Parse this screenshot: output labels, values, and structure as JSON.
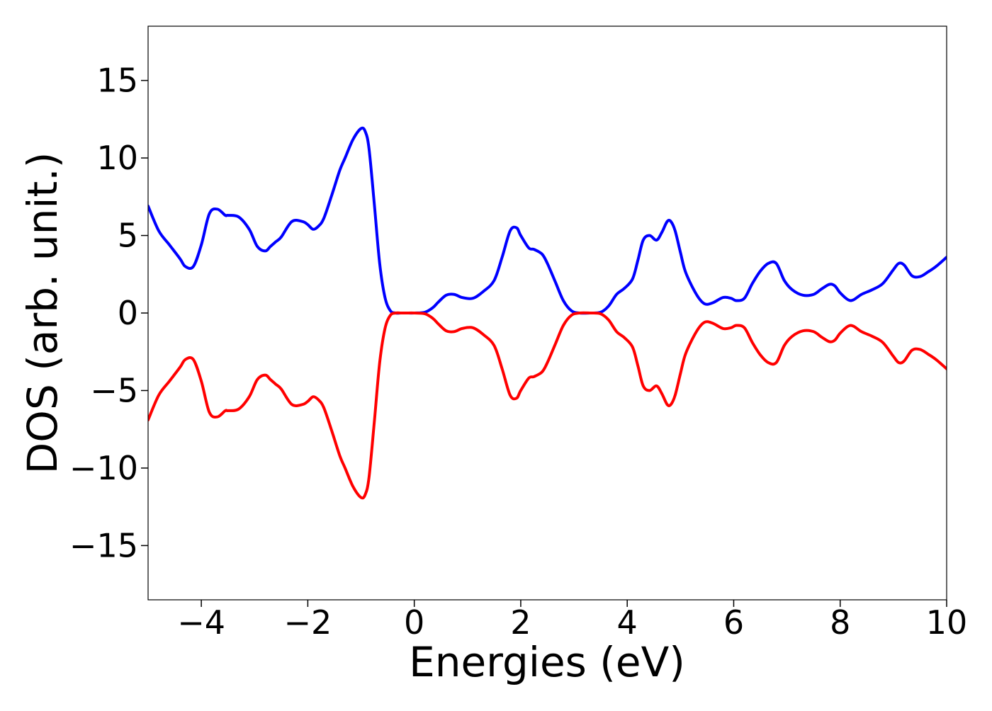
{
  "chart_data": {
    "type": "line",
    "xlabel": "Energies (eV)",
    "ylabel": "DOS (arb. unit.)",
    "xlim": [
      -5,
      10
    ],
    "ylim": [
      -18.5,
      18.5
    ],
    "xticks": [
      -4,
      -2,
      0,
      2,
      4,
      6,
      8,
      10
    ],
    "xtick_labels": [
      "−4",
      "−2",
      "0",
      "2",
      "4",
      "6",
      "8",
      "10"
    ],
    "yticks": [
      15,
      10,
      5,
      0,
      -5,
      -10,
      -15
    ],
    "ytick_labels": [
      "15",
      "10",
      "5",
      "0",
      "−5",
      "−10",
      "−15"
    ],
    "grid": false,
    "legend": "none",
    "x": [
      -5.0,
      -4.8,
      -4.6,
      -4.4,
      -4.3,
      -4.15,
      -4.0,
      -3.85,
      -3.7,
      -3.55,
      -3.5,
      -3.3,
      -3.1,
      -2.95,
      -2.8,
      -2.7,
      -2.6,
      -2.5,
      -2.3,
      -2.1,
      -2.0,
      -1.9,
      -1.8,
      -1.7,
      -1.55,
      -1.4,
      -1.3,
      -1.15,
      -1.0,
      -0.92,
      -0.85,
      -0.75,
      -0.65,
      -0.55,
      -0.45,
      -0.35,
      -0.25,
      -0.15,
      0.0,
      0.2,
      0.35,
      0.45,
      0.6,
      0.75,
      0.9,
      1.1,
      1.3,
      1.5,
      1.65,
      1.8,
      1.92,
      2.0,
      2.15,
      2.25,
      2.4,
      2.5,
      2.65,
      2.8,
      2.95,
      3.1,
      3.3,
      3.5,
      3.65,
      3.8,
      3.95,
      4.1,
      4.2,
      4.3,
      4.42,
      4.55,
      4.65,
      4.75,
      4.82,
      4.9,
      5.0,
      5.1,
      5.3,
      5.45,
      5.6,
      5.8,
      5.95,
      6.05,
      6.2,
      6.35,
      6.5,
      6.65,
      6.8,
      6.95,
      7.1,
      7.3,
      7.5,
      7.65,
      7.8,
      7.9,
      8.0,
      8.15,
      8.25,
      8.4,
      8.6,
      8.8,
      9.0,
      9.1,
      9.2,
      9.35,
      9.5,
      9.65,
      9.8,
      10.0
    ],
    "series": [
      {
        "color": "#0000ff",
        "values": [
          6.9,
          5.3,
          4.4,
          3.5,
          3.0,
          3.0,
          4.4,
          6.4,
          6.7,
          6.3,
          6.3,
          6.2,
          5.4,
          4.3,
          4.0,
          4.3,
          4.6,
          4.9,
          5.9,
          5.9,
          5.7,
          5.4,
          5.6,
          6.1,
          7.6,
          9.2,
          10.0,
          11.2,
          11.9,
          11.7,
          10.6,
          7.0,
          3.2,
          1.0,
          0.15,
          0.0,
          0.0,
          0.0,
          0.0,
          0.05,
          0.35,
          0.7,
          1.15,
          1.2,
          1.0,
          0.95,
          1.4,
          2.1,
          3.6,
          5.3,
          5.5,
          5.0,
          4.2,
          4.1,
          3.8,
          3.2,
          2.0,
          0.8,
          0.15,
          0.0,
          0.0,
          0.05,
          0.45,
          1.2,
          1.6,
          2.2,
          3.4,
          4.7,
          5.0,
          4.7,
          5.2,
          5.9,
          5.9,
          5.3,
          3.9,
          2.6,
          1.2,
          0.6,
          0.65,
          1.0,
          0.95,
          0.8,
          0.95,
          1.9,
          2.7,
          3.2,
          3.2,
          2.1,
          1.5,
          1.15,
          1.2,
          1.55,
          1.85,
          1.75,
          1.3,
          0.85,
          0.85,
          1.2,
          1.5,
          1.9,
          2.8,
          3.2,
          3.1,
          2.4,
          2.35,
          2.65,
          3.0,
          3.6
        ]
      },
      {
        "color": "#ff0000",
        "values": [
          -6.9,
          -5.3,
          -4.4,
          -3.5,
          -3.0,
          -3.0,
          -4.4,
          -6.4,
          -6.7,
          -6.3,
          -6.3,
          -6.2,
          -5.4,
          -4.3,
          -4.0,
          -4.3,
          -4.6,
          -4.9,
          -5.9,
          -5.9,
          -5.7,
          -5.4,
          -5.6,
          -6.1,
          -7.6,
          -9.2,
          -10.0,
          -11.2,
          -11.9,
          -11.7,
          -10.6,
          -7.0,
          -3.2,
          -1.0,
          -0.15,
          0.0,
          0.0,
          0.0,
          0.0,
          -0.05,
          -0.35,
          -0.7,
          -1.15,
          -1.2,
          -1.0,
          -0.95,
          -1.4,
          -2.1,
          -3.6,
          -5.3,
          -5.5,
          -5.0,
          -4.2,
          -4.1,
          -3.8,
          -3.2,
          -2.0,
          -0.8,
          -0.15,
          0.0,
          0.0,
          -0.05,
          -0.45,
          -1.2,
          -1.6,
          -2.2,
          -3.4,
          -4.7,
          -5.0,
          -4.7,
          -5.2,
          -5.9,
          -5.9,
          -5.3,
          -3.9,
          -2.6,
          -1.2,
          -0.6,
          -0.65,
          -1.0,
          -0.95,
          -0.8,
          -0.95,
          -1.9,
          -2.7,
          -3.2,
          -3.2,
          -2.1,
          -1.5,
          -1.15,
          -1.2,
          -1.55,
          -1.85,
          -1.75,
          -1.3,
          -0.85,
          -0.85,
          -1.2,
          -1.5,
          -1.9,
          -2.8,
          -3.2,
          -3.1,
          -2.4,
          -2.35,
          -2.65,
          -3.0,
          -3.6
        ]
      }
    ]
  }
}
